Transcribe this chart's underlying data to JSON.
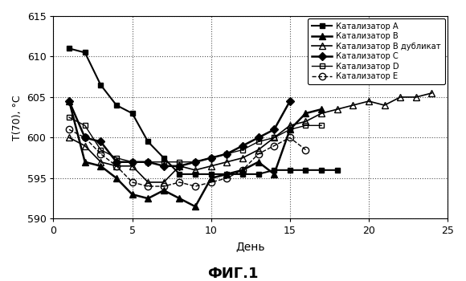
{
  "title": "ФИГ.1",
  "xlabel": "День",
  "ylabel": "T(70), °C",
  "xlim": [
    0,
    25
  ],
  "ylim": [
    590,
    615
  ],
  "yticks": [
    590,
    595,
    600,
    605,
    610,
    615
  ],
  "xticks": [
    0,
    5,
    10,
    15,
    20,
    25
  ],
  "background_color": "#ffffff",
  "series": {
    "A": {
      "label": "Катализатор A",
      "x": [
        1,
        2,
        3,
        4,
        5,
        6,
        7,
        8,
        9,
        10,
        11,
        12,
        13,
        14,
        15,
        16,
        17,
        18
      ],
      "y": [
        611,
        610.5,
        606.5,
        604,
        603,
        599.5,
        597.5,
        595.5,
        595.5,
        595.5,
        595.5,
        595.5,
        595.5,
        596,
        596,
        596,
        596,
        596
      ],
      "marker": "s",
      "linestyle": "-",
      "color": "#000000",
      "markersize": 5,
      "linewidth": 1.5,
      "fillstyle": "full"
    },
    "B": {
      "label": "Катализатор B",
      "x": [
        1,
        2,
        3,
        4,
        5,
        6,
        7,
        8,
        9,
        10,
        11,
        12,
        13,
        14,
        15,
        16,
        17
      ],
      "y": [
        604.5,
        597,
        596.5,
        595,
        593,
        592.5,
        593.5,
        592.5,
        591.5,
        595,
        595.5,
        596,
        597,
        595.5,
        601,
        603,
        603.5
      ],
      "marker": "^",
      "linestyle": "-",
      "color": "#000000",
      "markersize": 6,
      "linewidth": 1.8,
      "fillstyle": "full"
    },
    "B_dup": {
      "label": "Катализатор B дубликат",
      "x": [
        1,
        2,
        3,
        4,
        5,
        6,
        7,
        8,
        9,
        10,
        11,
        12,
        13,
        14,
        15,
        16,
        17,
        18,
        19,
        20,
        21,
        22,
        23,
        24
      ],
      "y": [
        600,
        599,
        597,
        596.5,
        596.5,
        594.5,
        594.5,
        596.5,
        596,
        596.5,
        597,
        597.5,
        598.5,
        600,
        601.5,
        602,
        603,
        603.5,
        604,
        604.5,
        604,
        605,
        605,
        605.5
      ],
      "marker": "^",
      "linestyle": "-",
      "color": "#000000",
      "markersize": 6,
      "linewidth": 1.2,
      "fillstyle": "none"
    },
    "C": {
      "label": "Катализатор C",
      "x": [
        1,
        2,
        3,
        4,
        5,
        6,
        7,
        8,
        9,
        10,
        11,
        12,
        13,
        14,
        15
      ],
      "y": [
        604.5,
        600,
        599.5,
        597,
        597,
        597,
        596.5,
        596.5,
        597,
        597.5,
        598,
        599,
        600,
        601,
        604.5
      ],
      "marker": "D",
      "linestyle": "-",
      "color": "#000000",
      "markersize": 5,
      "linewidth": 1.8,
      "fillstyle": "full"
    },
    "D": {
      "label": "Катализатор D",
      "x": [
        1,
        2,
        3,
        4,
        5,
        6,
        7,
        8,
        9,
        10,
        11,
        12,
        13,
        14,
        15,
        16,
        17
      ],
      "y": [
        602.5,
        601.5,
        598.5,
        597.5,
        597,
        597,
        597,
        597,
        597,
        597.5,
        598,
        598.5,
        599.5,
        600,
        601,
        601.5,
        601.5
      ],
      "marker": "s",
      "linestyle": "-",
      "color": "#000000",
      "markersize": 5,
      "linewidth": 1.0,
      "fillstyle": "none"
    },
    "E": {
      "label": "Катализатор E",
      "x": [
        1,
        2,
        3,
        4,
        5,
        6,
        7,
        8,
        9,
        10,
        11,
        12,
        13,
        14,
        15,
        16
      ],
      "y": [
        601,
        600,
        598,
        596.5,
        594.5,
        594,
        594,
        594.5,
        594,
        594.5,
        595,
        596,
        598,
        599,
        600,
        598.5
      ],
      "marker": "o",
      "linestyle": "--",
      "color": "#000000",
      "markersize": 6,
      "linewidth": 1.0,
      "fillstyle": "none"
    }
  }
}
